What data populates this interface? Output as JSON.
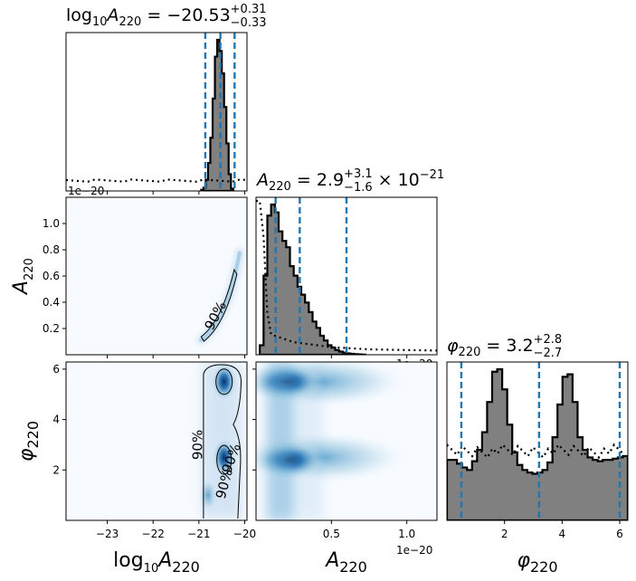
{
  "chart_data": {
    "type": "corner",
    "parameters": [
      "log10_A220",
      "A220",
      "phi220"
    ],
    "axis_labels": {
      "log10_A220": "log10A220",
      "A220": "A220",
      "phi220": "φ220"
    },
    "titles": [
      {
        "param": "log10_A220",
        "text": "log10A220 = −20.53",
        "plus": "+0.31",
        "minus": "−0.33",
        "median": -20.53
      },
      {
        "param": "A220",
        "text": "A220 = 2.9",
        "plus": "+3.1",
        "minus": "−1.6",
        "suffix": "× 10−21",
        "median": 0.29
      },
      {
        "param": "phi220",
        "text": "φ220 = 3.2",
        "plus": "+2.8",
        "minus": "−2.7",
        "median": 3.2
      }
    ],
    "offset_label": "1e−20",
    "xlim": {
      "log10_A220": [
        -23.9,
        -19.95
      ],
      "A220": [
        0,
        1.2
      ],
      "phi220": [
        0,
        6.283
      ]
    },
    "ylim": {
      "A220": [
        0,
        1.2
      ],
      "phi220": [
        0,
        6.283
      ]
    },
    "ticks": {
      "log10_A220": [
        -23,
        -22,
        -21,
        -20
      ],
      "log10_A220_labels": [
        "−23",
        "−22",
        "−21",
        "−20"
      ],
      "A220": [
        0.2,
        0.4,
        0.6,
        0.8,
        1.0
      ],
      "A220_y_labels": [
        "0.2",
        "0.4",
        "0.6",
        "0.8",
        "1.0"
      ],
      "A220_x": [
        0.5,
        1.0
      ],
      "A220_x_labels": [
        "0.5",
        "1.0"
      ],
      "phi220": [
        2,
        4,
        6
      ],
      "phi220_labels": [
        "2",
        "4",
        "6"
      ]
    },
    "quantiles": {
      "log10_A220": [
        -20.86,
        -20.53,
        -20.22
      ],
      "A220": [
        0.13,
        0.29,
        0.6
      ],
      "phi220": [
        0.5,
        3.2,
        6.0
      ]
    },
    "contour_label": "90%",
    "hist_log10_A220": {
      "bins_start": -20.95,
      "bin_width": 0.05,
      "counts": [
        4,
        12,
        40,
        100,
        190,
        330,
        480,
        540,
        500,
        420,
        300,
        170,
        60,
        8
      ]
    },
    "prior_log10_A220": {
      "level": 37
    },
    "hist_A220": {
      "bins_start": 0.025,
      "bin_width": 0.025,
      "counts": [
        60,
        500,
        880,
        950,
        900,
        780,
        720,
        680,
        560,
        500,
        430,
        380,
        330,
        270,
        210,
        170,
        120,
        90,
        60,
        45,
        30,
        20,
        14,
        9,
        6,
        4,
        2,
        1
      ]
    },
    "prior_A220": {
      "x": [
        0,
        0.025,
        0.05,
        0.075,
        0.1,
        0.25,
        0.5,
        0.75,
        1.0,
        1.2
      ],
      "y": [
        1000,
        1000,
        700,
        250,
        120,
        75,
        45,
        32,
        28,
        25
      ]
    },
    "hist_phi220": {
      "bins_start": 0.0,
      "bin_width": 0.1745,
      "counts": [
        240,
        240,
        225,
        210,
        200,
        235,
        280,
        350,
        470,
        590,
        600,
        520,
        380,
        270,
        220,
        200,
        190,
        185,
        190,
        200,
        230,
        330,
        460,
        570,
        580,
        470,
        330,
        280,
        250,
        240,
        235,
        240,
        240,
        245,
        250,
        255
      ]
    },
    "prior_phi220": {
      "level": 275
    }
  }
}
